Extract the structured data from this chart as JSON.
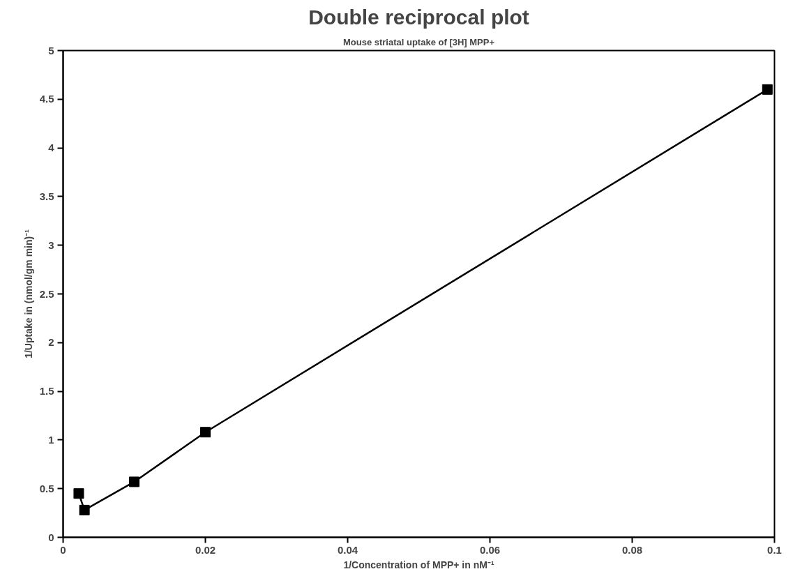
{
  "chart_data": {
    "type": "line",
    "title": "Double reciprocal plot",
    "subtitle": "Mouse striatal uptake of [3H] MPP+",
    "xlabel": "1/Concentration of MPP+ in nM⁻¹",
    "ylabel": "1/Uptake in (nmol/gm min)⁻¹",
    "x": [
      0.0022,
      0.003,
      0.01,
      0.02,
      0.099
    ],
    "series": [
      {
        "color": "#000000",
        "values": [
          0.45,
          0.28,
          0.57,
          1.08,
          4.6
        ]
      }
    ],
    "marker": "square",
    "line_style": "solid",
    "grid": false,
    "xlim": [
      0,
      0.1
    ],
    "ylim": [
      0,
      5
    ],
    "xticks": [
      0,
      0.02,
      0.04,
      0.06,
      0.08,
      0.1
    ],
    "yticks": [
      0,
      0.5,
      1,
      1.5,
      2,
      2.5,
      3,
      3.5,
      4,
      4.5,
      5
    ]
  }
}
